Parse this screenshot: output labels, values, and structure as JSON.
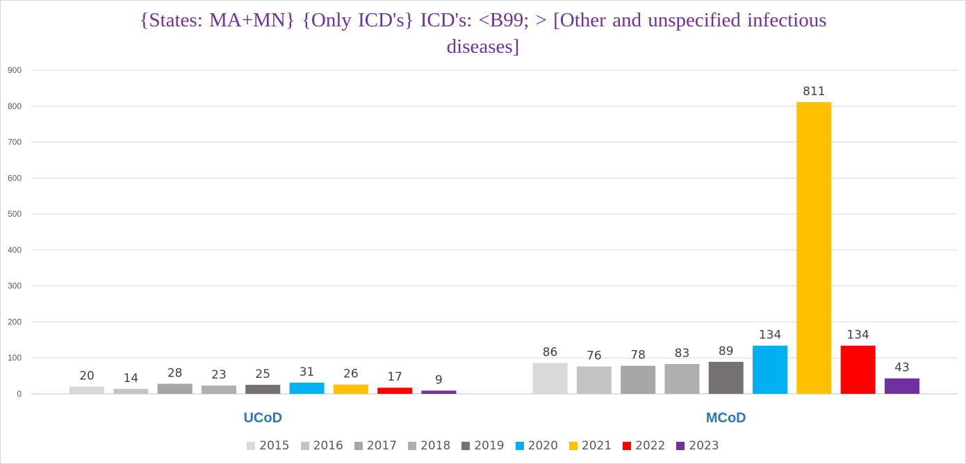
{
  "chart_data": {
    "type": "bar",
    "title_lines": [
      "{States: MA+MN}  {Only ICD's} ICD's: <B99; > [Other and unspecified infectious",
      "diseases]"
    ],
    "categories": [
      "UCoD",
      "MCoD"
    ],
    "category_label_color": "#2e75b6",
    "series": [
      {
        "name": "2015",
        "color": "#d9d9d9",
        "values": [
          20,
          86
        ]
      },
      {
        "name": "2016",
        "color": "#c3c3c3",
        "values": [
          14,
          76
        ]
      },
      {
        "name": "2017",
        "color": "#a6a6a6",
        "values": [
          28,
          78
        ]
      },
      {
        "name": "2018",
        "color": "#b1aeae",
        "values": [
          23,
          83
        ]
      },
      {
        "name": "2019",
        "color": "#767171",
        "values": [
          25,
          89
        ]
      },
      {
        "name": "2020",
        "color": "#00b0f0",
        "values": [
          31,
          134
        ]
      },
      {
        "name": "2021",
        "color": "#ffc000",
        "values": [
          26,
          811
        ]
      },
      {
        "name": "2022",
        "color": "#ff0000",
        "values": [
          17,
          134
        ]
      },
      {
        "name": "2023",
        "color": "#7030a0",
        "values": [
          9,
          43
        ]
      }
    ],
    "ylim": [
      0,
      900
    ],
    "yticks": [
      0,
      100,
      200,
      300,
      400,
      500,
      600,
      700,
      800,
      900
    ],
    "grid": true,
    "data_labels": true,
    "legend_position": "bottom",
    "xlabel": "",
    "ylabel": ""
  }
}
